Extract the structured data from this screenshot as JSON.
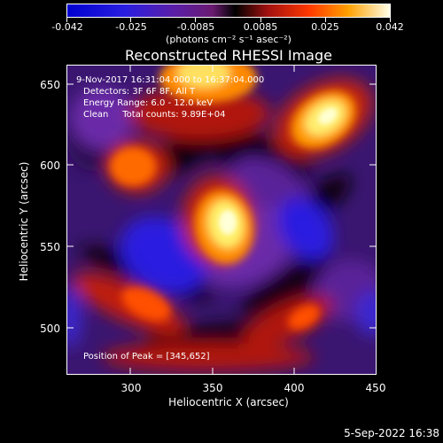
{
  "colorbar": {
    "tick_labels": [
      "-0.042",
      "-0.025",
      "-0.0085",
      "0.0085",
      "0.025",
      "0.042"
    ],
    "units": "(photons cm⁻² s⁻¹ asec⁻²)",
    "min": -0.042,
    "max": 0.042
  },
  "title": "Reconstructed RHESSI Image",
  "axes": {
    "xlabel": "Heliocentric X (arcsec)",
    "ylabel": "Heliocentric Y (arcsec)",
    "xticks": [
      "300",
      "350",
      "400",
      "450"
    ],
    "yticks": [
      "650",
      "600",
      "550",
      "500"
    ],
    "xlim": [
      262,
      450
    ],
    "ylim": [
      470,
      665
    ]
  },
  "annotations": {
    "time_range": "9-Nov-2017 16:31:04.000 to 16:37:04.000",
    "detectors": "Detectors: 3F 6F 8F, All T",
    "energy": "Energy Range: 6.0 - 12.0 keV",
    "clean": "Clean     Total counts: 9.89E+04",
    "peak": "Position of Peak = [345,652]"
  },
  "footer": "5-Sep-2022 16:38"
}
